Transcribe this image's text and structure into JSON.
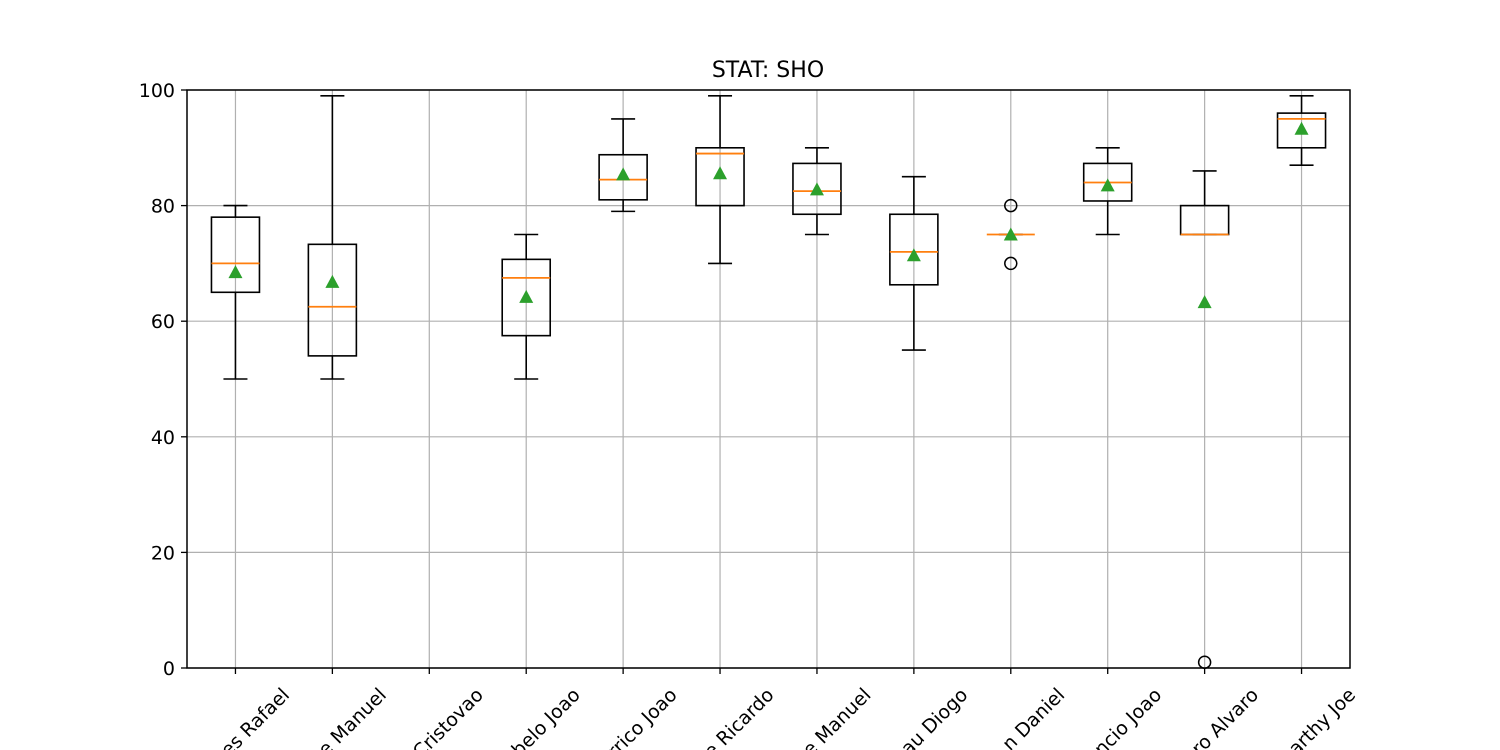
{
  "chart_data": {
    "type": "box",
    "title": "STAT: SHO",
    "ylim": [
      0,
      100
    ],
    "yticks": [
      0,
      20,
      40,
      60,
      80,
      100
    ],
    "grid": true,
    "categories": [
      "es Rafael",
      "e Manuel",
      "Cristovao",
      "belo Joao",
      "rrico Joao",
      "e Ricardo",
      "e Manuel",
      "eau Diogo",
      "n Daniel",
      "ncio Joao",
      "ro Alvaro",
      "arthy Joe"
    ],
    "series": [
      {
        "whisker_low": 50,
        "q1": 65,
        "median": 70,
        "q3": 78,
        "whisker_high": 80,
        "mean": 68.5,
        "outliers": []
      },
      {
        "whisker_low": 50,
        "q1": 54,
        "median": 62.5,
        "q3": 73.3,
        "whisker_high": 99,
        "mean": 66.8,
        "outliers": []
      },
      null,
      {
        "whisker_low": 50,
        "q1": 57.5,
        "median": 67.5,
        "q3": 70.7,
        "whisker_high": 75,
        "mean": 64.2,
        "outliers": []
      },
      {
        "whisker_low": 79,
        "q1": 81,
        "median": 84.5,
        "q3": 88.8,
        "whisker_high": 95,
        "mean": 85.4,
        "outliers": []
      },
      {
        "whisker_low": 70,
        "q1": 80,
        "median": 89,
        "q3": 90,
        "whisker_high": 99,
        "mean": 85.6,
        "outliers": []
      },
      {
        "whisker_low": 75,
        "q1": 78.5,
        "median": 82.5,
        "q3": 87.3,
        "whisker_high": 90,
        "mean": 82.8,
        "outliers": []
      },
      {
        "whisker_low": 55,
        "q1": 66.3,
        "median": 72,
        "q3": 78.5,
        "whisker_high": 85,
        "mean": 71.4,
        "outliers": []
      },
      {
        "whisker_low": 75,
        "q1": 75,
        "median": 75,
        "q3": 75,
        "whisker_high": 75,
        "mean": 75,
        "outliers": [
          80,
          70
        ]
      },
      {
        "whisker_low": 75,
        "q1": 80.8,
        "median": 84,
        "q3": 87.3,
        "whisker_high": 90,
        "mean": 83.5,
        "outliers": []
      },
      {
        "whisker_low": 75,
        "q1": 75,
        "median": 75,
        "q3": 80,
        "whisker_high": 86,
        "mean": 63.3,
        "outliers": [
          1
        ]
      },
      {
        "whisker_low": 87,
        "q1": 90,
        "median": 95,
        "q3": 96,
        "whisker_high": 99,
        "mean": 93.3,
        "outliers": []
      }
    ],
    "colors": {
      "box": "#000000",
      "median": "#ff7f0e",
      "mean": "#2ca02c",
      "grid": "#b0b0b0"
    }
  }
}
